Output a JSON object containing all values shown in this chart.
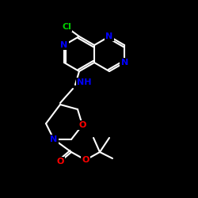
{
  "background_color": "#000000",
  "bond_color": "#ffffff",
  "atom_colors": {
    "N": "#0000ff",
    "O": "#ff0000",
    "Cl": "#00cc00",
    "C": "#ffffff",
    "H": "#ffffff"
  },
  "figsize": [
    2.5,
    2.5
  ],
  "dpi": 100
}
